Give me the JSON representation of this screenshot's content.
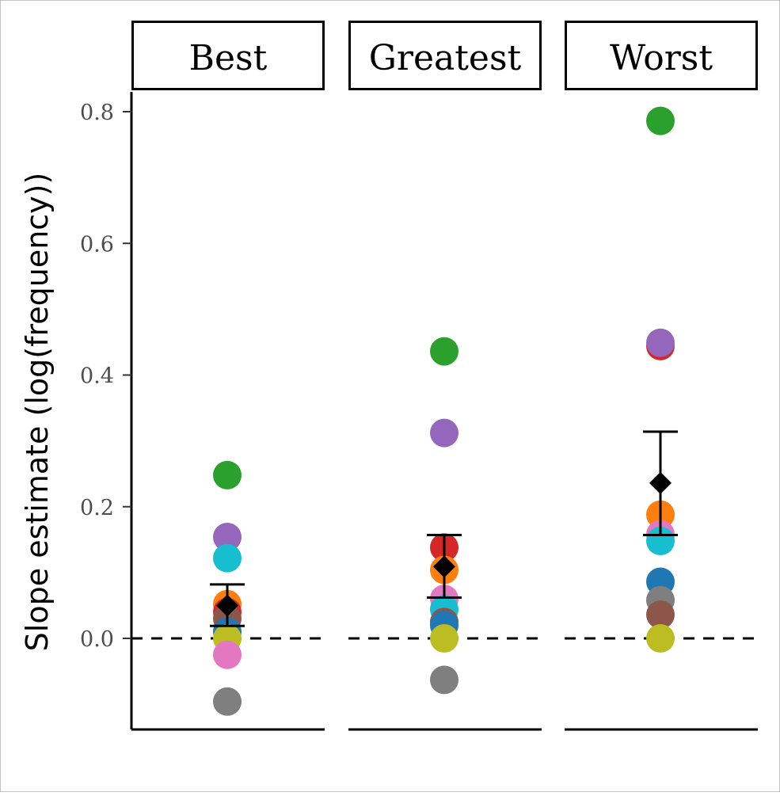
{
  "chart_data": {
    "type": "scatter",
    "ylabel": "Slope estimate (log(frequency))",
    "xlabel": "",
    "ylim": [
      -0.14,
      0.83
    ],
    "yticks": [
      "0.0",
      "0.2",
      "0.4",
      "0.6",
      "0.8"
    ],
    "yticks_values": [
      0.0,
      0.2,
      0.4,
      0.6,
      0.8
    ],
    "reference_line": {
      "y": 0.0,
      "style": "dashed"
    },
    "grid": false,
    "legend": "none",
    "panels": [
      {
        "label": "Best",
        "points": [
          {
            "y": 0.248,
            "color": "#2ca02c"
          },
          {
            "y": 0.154,
            "color": "#9467bd"
          },
          {
            "y": 0.122,
            "color": "#17becf"
          },
          {
            "y": 0.052,
            "color": "#ff7f0e"
          },
          {
            "y": 0.04,
            "color": "#d62728"
          },
          {
            "y": 0.03,
            "color": "#8c564b"
          },
          {
            "y": 0.01,
            "color": "#1f77b4"
          },
          {
            "y": 0.0,
            "color": "#bcbd22"
          },
          {
            "y": -0.025,
            "color": "#e377c2"
          },
          {
            "y": -0.096,
            "color": "#7f7f7f"
          }
        ],
        "mean": 0.05,
        "ci": [
          0.019,
          0.082
        ]
      },
      {
        "label": "Greatest",
        "points": [
          {
            "y": 0.436,
            "color": "#2ca02c"
          },
          {
            "y": 0.312,
            "color": "#9467bd"
          },
          {
            "y": 0.138,
            "color": "#d62728"
          },
          {
            "y": 0.104,
            "color": "#ff7f0e"
          },
          {
            "y": 0.06,
            "color": "#e377c2"
          },
          {
            "y": 0.044,
            "color": "#17becf"
          },
          {
            "y": 0.025,
            "color": "#8c564b"
          },
          {
            "y": 0.02,
            "color": "#1f77b4"
          },
          {
            "y": 0.0,
            "color": "#bcbd22"
          },
          {
            "y": -0.063,
            "color": "#7f7f7f"
          }
        ],
        "mean": 0.109,
        "ci": [
          0.062,
          0.157
        ]
      },
      {
        "label": "Worst",
        "points": [
          {
            "y": 0.786,
            "color": "#2ca02c"
          },
          {
            "y": 0.444,
            "color": "#d62728"
          },
          {
            "y": 0.449,
            "color": "#9467bd"
          },
          {
            "y": 0.188,
            "color": "#ff7f0e"
          },
          {
            "y": 0.158,
            "color": "#e377c2"
          },
          {
            "y": 0.148,
            "color": "#17becf"
          },
          {
            "y": 0.086,
            "color": "#1f77b4"
          },
          {
            "y": 0.058,
            "color": "#7f7f7f"
          },
          {
            "y": 0.036,
            "color": "#8c564b"
          },
          {
            "y": 0.0,
            "color": "#bcbd22"
          }
        ],
        "mean": 0.236,
        "ci": [
          0.157,
          0.314
        ]
      }
    ]
  }
}
